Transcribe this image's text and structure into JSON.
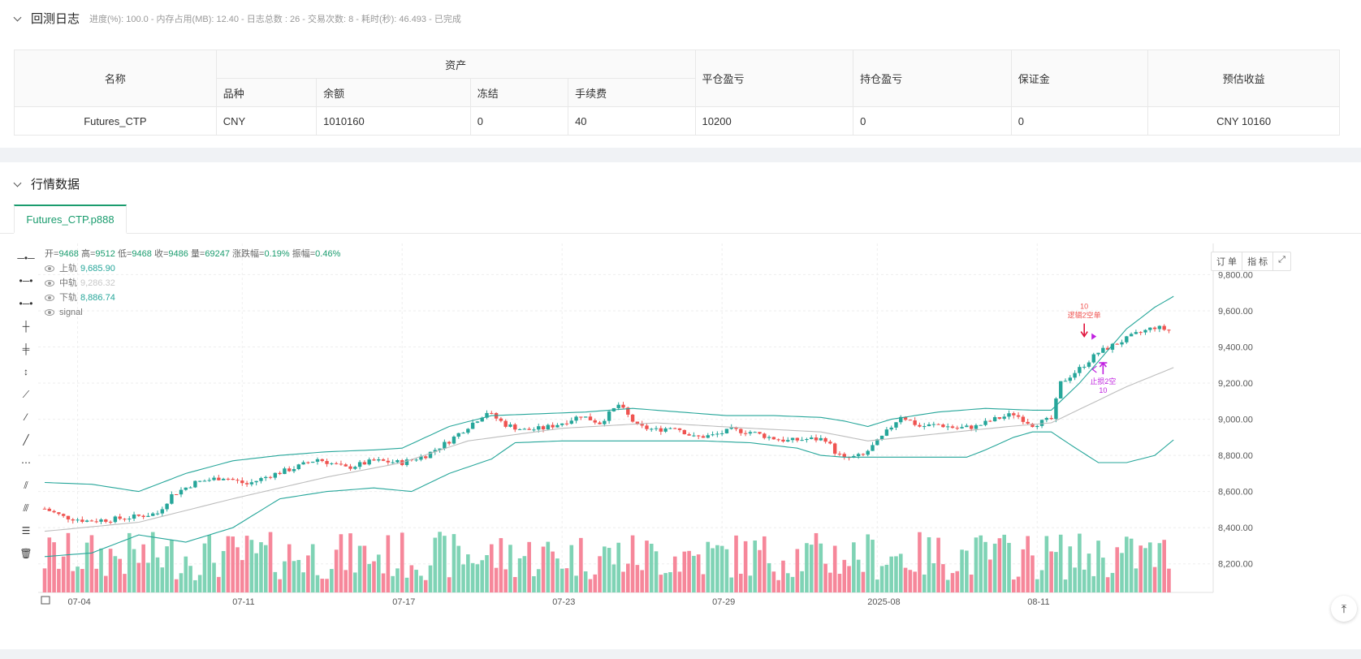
{
  "log": {
    "title": "回测日志",
    "meta": "进度(%): 100.0 - 内存占用(MB): 12.40 - 日志总数 : 26 - 交易次数:  8 - 耗时(秒): 46.493 - 已完成",
    "table": {
      "headers": {
        "name": "名称",
        "assets": "资产",
        "close_pnl": "平仓盈亏",
        "hold_pnl": "持仓盈亏",
        "margin": "保证金",
        "est_profit": "预估收益"
      },
      "sub_headers": {
        "symbol": "品种",
        "balance": "余额",
        "frozen": "冻结",
        "fee": "手续费"
      },
      "row": {
        "name": "Futures_CTP",
        "symbol": "CNY",
        "balance": "1010160",
        "frozen": "0",
        "fee": "40",
        "close_pnl": "10200",
        "hold_pnl": "0",
        "margin": "0",
        "est_profit": "CNY 10160"
      }
    }
  },
  "market": {
    "title": "行情数据",
    "tab": "Futures_CTP.p888",
    "buttons": {
      "order": "订 单",
      "indicator": "指 标"
    },
    "ohlc": {
      "open_k": "开=",
      "open": "9468",
      "high_k": "高=",
      "high": "9512",
      "low_k": "低=",
      "low": "9468",
      "close_k": "收=",
      "close": "9486",
      "vol_k": "量=",
      "vol": "69247",
      "chg_k": "涨跌幅=",
      "chg": "0.19%",
      "amp_k": "振幅=",
      "amp": "0.46%"
    },
    "indicators": [
      {
        "name": "上轨",
        "value": "9,685.90",
        "color": "#26a69a"
      },
      {
        "name": "中轨",
        "value": "9,286.32",
        "color": "#c8c8c8"
      },
      {
        "name": "下轨",
        "value": "8,886.74",
        "color": "#26a69a"
      },
      {
        "name": "signal",
        "value": ""
      }
    ]
  },
  "chart_data": {
    "type": "candlestick",
    "y_ticks": [
      "9,800.00",
      "9,600.00",
      "9,400.00",
      "9,200.00",
      "9,000.00",
      "8,800.00",
      "8,600.00",
      "8,400.00",
      "8,200.00"
    ],
    "y_tick_values": [
      9800,
      9600,
      9400,
      9200,
      9000,
      8800,
      8600,
      8400,
      8200
    ],
    "ylim": [
      8100,
      9950
    ],
    "x_ticks": [
      {
        "label": "07-04",
        "i": 7
      },
      {
        "label": "07-11",
        "i": 42
      },
      {
        "label": "07-17",
        "i": 76
      },
      {
        "label": "07-23",
        "i": 110
      },
      {
        "label": "07-29",
        "i": 144
      },
      {
        "label": "2025-08",
        "i": 177
      },
      {
        "label": "08-11",
        "i": 211
      }
    ],
    "bar_count": 232,
    "anchors": [
      [
        0,
        8505
      ],
      [
        4,
        8460
      ],
      [
        9,
        8438
      ],
      [
        14,
        8445
      ],
      [
        19,
        8460
      ],
      [
        24,
        8480
      ],
      [
        27,
        8580
      ],
      [
        32,
        8650
      ],
      [
        38,
        8680
      ],
      [
        43,
        8640
      ],
      [
        48,
        8690
      ],
      [
        53,
        8730
      ],
      [
        58,
        8780
      ],
      [
        64,
        8730
      ],
      [
        70,
        8770
      ],
      [
        76,
        8760
      ],
      [
        81,
        8800
      ],
      [
        86,
        8880
      ],
      [
        90,
        8960
      ],
      [
        94,
        9040
      ],
      [
        98,
        8970
      ],
      [
        102,
        8940
      ],
      [
        106,
        8950
      ],
      [
        110,
        8980
      ],
      [
        114,
        9020
      ],
      [
        118,
        8980
      ],
      [
        122,
        9080
      ],
      [
        126,
        8960
      ],
      [
        130,
        8940
      ],
      [
        134,
        8960
      ],
      [
        138,
        8900
      ],
      [
        142,
        8910
      ],
      [
        146,
        8940
      ],
      [
        150,
        8930
      ],
      [
        154,
        8900
      ],
      [
        158,
        8880
      ],
      [
        162,
        8890
      ],
      [
        166,
        8890
      ],
      [
        168,
        8820
      ],
      [
        170,
        8780
      ],
      [
        174,
        8800
      ],
      [
        178,
        8900
      ],
      [
        182,
        9020
      ],
      [
        186,
        8960
      ],
      [
        190,
        8970
      ],
      [
        194,
        8950
      ],
      [
        198,
        8960
      ],
      [
        202,
        9000
      ],
      [
        206,
        9030
      ],
      [
        210,
        8970
      ],
      [
        214,
        9000
      ],
      [
        216,
        9200
      ],
      [
        220,
        9280
      ],
      [
        224,
        9370
      ],
      [
        228,
        9420
      ],
      [
        232,
        9470
      ],
      [
        236,
        9510
      ],
      [
        240,
        9486
      ]
    ],
    "upper_band": [
      [
        0,
        8650
      ],
      [
        10,
        8640
      ],
      [
        20,
        8600
      ],
      [
        30,
        8700
      ],
      [
        40,
        8770
      ],
      [
        50,
        8800
      ],
      [
        60,
        8820
      ],
      [
        70,
        8830
      ],
      [
        76,
        8840
      ],
      [
        86,
        8960
      ],
      [
        95,
        9020
      ],
      [
        105,
        9030
      ],
      [
        115,
        9040
      ],
      [
        125,
        9060
      ],
      [
        135,
        9040
      ],
      [
        145,
        9020
      ],
      [
        155,
        9020
      ],
      [
        165,
        9010
      ],
      [
        170,
        8990
      ],
      [
        175,
        8960
      ],
      [
        180,
        9000
      ],
      [
        190,
        9040
      ],
      [
        200,
        9060
      ],
      [
        210,
        9050
      ],
      [
        214,
        9050
      ],
      [
        220,
        9200
      ],
      [
        225,
        9350
      ],
      [
        230,
        9500
      ],
      [
        236,
        9620
      ],
      [
        240,
        9680
      ]
    ],
    "middle_band": [
      [
        0,
        8380
      ],
      [
        20,
        8430
      ],
      [
        40,
        8560
      ],
      [
        60,
        8680
      ],
      [
        76,
        8760
      ],
      [
        90,
        8880
      ],
      [
        110,
        8950
      ],
      [
        130,
        8980
      ],
      [
        150,
        8950
      ],
      [
        165,
        8930
      ],
      [
        175,
        8880
      ],
      [
        190,
        8920
      ],
      [
        205,
        8960
      ],
      [
        214,
        8980
      ],
      [
        222,
        9080
      ],
      [
        230,
        9180
      ],
      [
        240,
        9286
      ]
    ],
    "lower_band": [
      [
        0,
        8240
      ],
      [
        10,
        8260
      ],
      [
        20,
        8360
      ],
      [
        30,
        8320
      ],
      [
        40,
        8400
      ],
      [
        50,
        8560
      ],
      [
        60,
        8600
      ],
      [
        70,
        8620
      ],
      [
        78,
        8600
      ],
      [
        86,
        8700
      ],
      [
        95,
        8780
      ],
      [
        100,
        8870
      ],
      [
        110,
        8880
      ],
      [
        125,
        8880
      ],
      [
        140,
        8880
      ],
      [
        150,
        8870
      ],
      [
        160,
        8840
      ],
      [
        165,
        8800
      ],
      [
        170,
        8790
      ],
      [
        180,
        8790
      ],
      [
        190,
        8790
      ],
      [
        196,
        8790
      ],
      [
        200,
        8830
      ],
      [
        206,
        8900
      ],
      [
        210,
        8930
      ],
      [
        214,
        8930
      ],
      [
        218,
        8860
      ],
      [
        224,
        8760
      ],
      [
        230,
        8760
      ],
      [
        236,
        8800
      ],
      [
        240,
        8886
      ]
    ],
    "signals": [
      {
        "label_top": "10",
        "label_bottom": "逻辑2空单",
        "i": 221,
        "price": 9440,
        "type": "short"
      },
      {
        "label_top": "止损2空",
        "label_bottom": "10",
        "i": 225,
        "price": 9330,
        "type": "cover"
      }
    ],
    "colors": {
      "up": "#26a69a",
      "down": "#ef5350",
      "band": "#26a69a",
      "mid": "#bdbdbd",
      "signal": "#c020e0"
    }
  }
}
